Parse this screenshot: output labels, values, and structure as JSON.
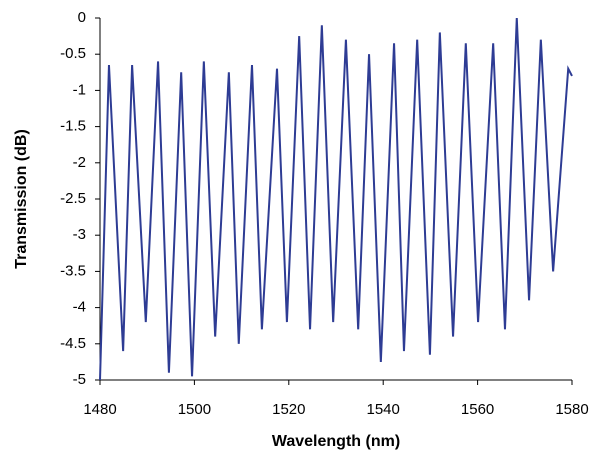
{
  "chart_data": {
    "type": "line",
    "xlabel": "Wavelength (nm)",
    "ylabel": "Transmission (dB)",
    "x": [
      1480.0,
      1481.9,
      1484.9,
      1486.8,
      1489.7,
      1492.3,
      1494.6,
      1497.2,
      1499.5,
      1502.0,
      1504.4,
      1507.3,
      1509.4,
      1512.2,
      1514.3,
      1517.5,
      1519.6,
      1522.2,
      1524.5,
      1527.0,
      1529.4,
      1532.1,
      1534.7,
      1537.0,
      1539.5,
      1542.3,
      1544.4,
      1547.2,
      1549.9,
      1552.0,
      1554.8,
      1557.5,
      1560.1,
      1563.3,
      1565.8,
      1568.3,
      1570.9,
      1573.4,
      1576.0,
      1579.2,
      1580.0
    ],
    "values": [
      -5,
      -0.65,
      -4.6,
      -0.65,
      -4.2,
      -0.6,
      -4.9,
      -0.75,
      -4.95,
      -0.6,
      -4.4,
      -0.75,
      -4.5,
      -0.65,
      -4.3,
      -0.7,
      -4.2,
      -0.25,
      -4.3,
      -0.1,
      -4.2,
      -0.3,
      -4.3,
      -0.5,
      -4.75,
      -0.35,
      -4.6,
      -0.3,
      -4.65,
      -0.2,
      -4.4,
      -0.35,
      -4.2,
      -0.35,
      -4.3,
      0,
      -3.9,
      -0.3,
      -3.5,
      -0.7,
      -0.8
    ],
    "color": "#2e3c94",
    "xlim": [
      1480,
      1580
    ],
    "xticks": [
      1480,
      1500,
      1520,
      1540,
      1560,
      1580
    ],
    "ylim": [
      -5,
      0
    ],
    "yticks": [
      0,
      -0.5,
      -1,
      -1.5,
      -2,
      -2.5,
      -3,
      -3.5,
      -4,
      -4.5,
      -5
    ],
    "grid": false
  }
}
